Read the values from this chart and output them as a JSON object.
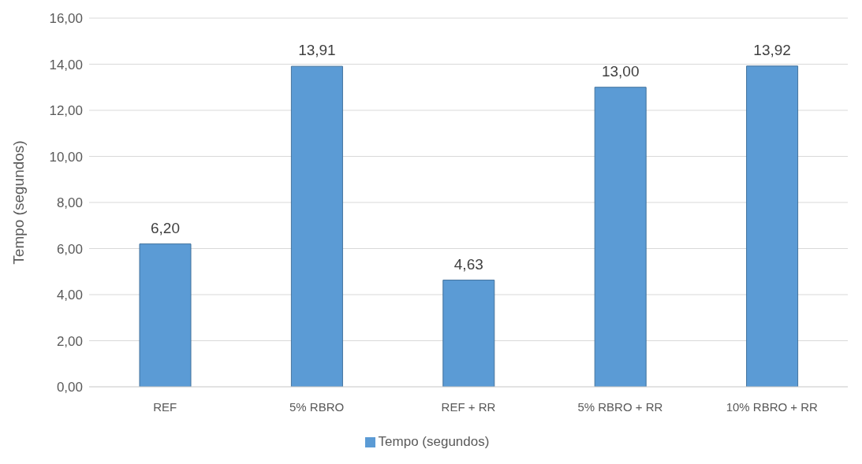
{
  "chart_data": {
    "type": "bar",
    "ylabel": "Tempo (segundos)",
    "categories": [
      "REF",
      "5% RBRO",
      "REF + RR",
      "5% RBRO + RR",
      "10% RBRO + RR"
    ],
    "series": [
      {
        "name": "Tempo (segundos)",
        "color": "#5b9bd5",
        "values": [
          6.2,
          13.91,
          4.63,
          13.0,
          13.92
        ],
        "value_labels": [
          "6,20",
          "13,91",
          "4,63",
          "13,00",
          "13,92"
        ]
      }
    ],
    "ylim": [
      0,
      16
    ],
    "yticks": [
      {
        "value": 0,
        "label": "0,00"
      },
      {
        "value": 2,
        "label": "2,00"
      },
      {
        "value": 4,
        "label": "4,00"
      },
      {
        "value": 6,
        "label": "6,00"
      },
      {
        "value": 8,
        "label": "8,00"
      },
      {
        "value": 10,
        "label": "10,00"
      },
      {
        "value": 12,
        "label": "12,00"
      },
      {
        "value": 14,
        "label": "14,00"
      },
      {
        "value": 16,
        "label": "16,00"
      }
    ],
    "grid": "y",
    "legend": "bottom"
  }
}
